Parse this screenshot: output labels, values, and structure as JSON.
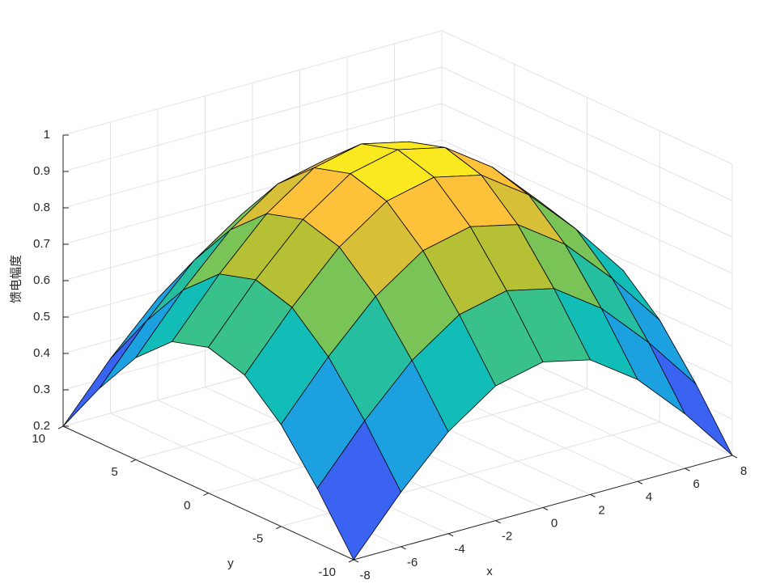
{
  "chart_data": {
    "type": "surface",
    "zlabel": "馈电幅度",
    "xlabel": "x",
    "ylabel": "y",
    "x": [
      -8,
      -6,
      -4,
      -2,
      0,
      2,
      4,
      6,
      8
    ],
    "y": [
      -10,
      -7.5,
      -5,
      -2.5,
      0,
      2.5,
      5,
      7.5,
      10
    ],
    "z": [
      [
        0.2,
        0.35,
        0.48,
        0.57,
        0.6,
        0.57,
        0.48,
        0.35,
        0.2
      ],
      [
        0.35,
        0.5,
        0.63,
        0.72,
        0.75,
        0.72,
        0.63,
        0.5,
        0.35
      ],
      [
        0.48,
        0.63,
        0.76,
        0.85,
        0.88,
        0.85,
        0.76,
        0.63,
        0.48
      ],
      [
        0.57,
        0.72,
        0.85,
        0.94,
        0.97,
        0.94,
        0.85,
        0.72,
        0.57
      ],
      [
        0.6,
        0.75,
        0.88,
        0.97,
        1.0,
        0.97,
        0.88,
        0.75,
        0.6
      ],
      [
        0.57,
        0.72,
        0.85,
        0.94,
        0.97,
        0.94,
        0.85,
        0.72,
        0.57
      ],
      [
        0.48,
        0.63,
        0.76,
        0.85,
        0.88,
        0.85,
        0.76,
        0.63,
        0.48
      ],
      [
        0.35,
        0.5,
        0.63,
        0.72,
        0.75,
        0.72,
        0.63,
        0.5,
        0.35
      ],
      [
        0.2,
        0.35,
        0.48,
        0.57,
        0.6,
        0.57,
        0.48,
        0.35,
        0.2
      ]
    ],
    "xlim": [
      -8,
      8
    ],
    "ylim": [
      -10,
      10
    ],
    "zlim": [
      0.2,
      1
    ],
    "xticks": [
      -8,
      -6,
      -4,
      -2,
      0,
      2,
      4,
      6,
      8
    ],
    "yticks": [
      -10,
      -5,
      0,
      5,
      10
    ],
    "zticks": [
      0.2,
      0.3,
      0.4,
      0.5,
      0.6,
      0.7,
      0.8,
      0.9,
      1
    ],
    "grid": true,
    "colormap": "parula",
    "edge_color": "#000000"
  }
}
